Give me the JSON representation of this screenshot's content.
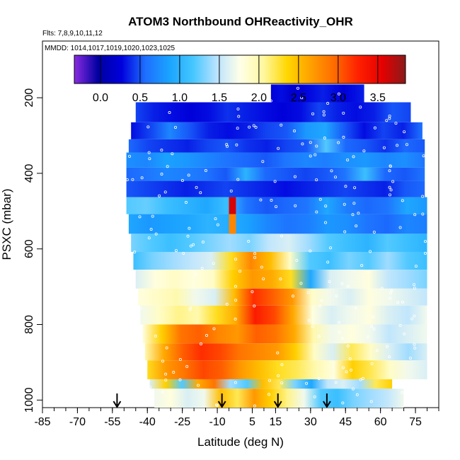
{
  "chart_data": {
    "type": "heatmap",
    "title": "ATOM3 Northbound OHReactivity_OHR",
    "flights_note": "Flts: 7,8,9,10,11,12",
    "dates_note": "MMDD: 1014,1017,1019,1020,1023,1025",
    "xlabel": "Latitude (deg N)",
    "ylabel": "PSXC (mbar)",
    "xlim": [
      -85,
      85
    ],
    "ylim": [
      1020,
      50
    ],
    "x_ticks": [
      -85,
      -70,
      -55,
      -40,
      -25,
      -10,
      5,
      15,
      30,
      45,
      60,
      75
    ],
    "x_tick_labels": [
      "-85",
      "-70",
      "-55",
      "-40",
      "-25",
      "-10",
      "5",
      "15",
      "30",
      "45",
      "60",
      "75"
    ],
    "y_ticks": [
      200,
      400,
      600,
      800,
      1000
    ],
    "y_tick_labels": [
      "200",
      "400",
      "600",
      "800",
      "1000"
    ],
    "colorbar": {
      "ticks": [
        0.0,
        0.5,
        1.0,
        1.5,
        2.0,
        2.5,
        3.0,
        3.5
      ],
      "tick_labels": [
        "0.0",
        "0.5",
        "1.0",
        "1.5",
        "2.0",
        "2.5",
        "3.0",
        "3.5"
      ],
      "range": [
        -0.33,
        3.85
      ],
      "colors": [
        "#8a2be2",
        "#0000a0",
        "#0000dd",
        "#1e6fff",
        "#1aa3ff",
        "#44c6ff",
        "#b8e2ff",
        "#ffffe8",
        "#fff8a0",
        "#ffd700",
        "#ffa000",
        "#ff6a00",
        "#ff2000",
        "#e60000",
        "#8b1a1a"
      ]
    },
    "arrows_latitude": [
      -53,
      -8,
      16,
      37
    ],
    "bands": [
      {
        "p_top": 165,
        "p_bot": 212,
        "x_start": 13,
        "x_end": 53,
        "values": [
          0.25,
          0.3,
          0.2,
          0.25,
          0.3,
          0.35,
          0.3,
          0.25,
          0.3,
          0.35
        ]
      },
      {
        "p_top": 212,
        "p_bot": 265,
        "x_start": -45,
        "x_end": 73,
        "values": [
          0.45,
          0.35,
          0.3,
          0.25,
          0.3,
          0.4,
          0.35,
          0.3,
          0.25,
          0.3,
          0.45,
          0.35,
          0.3,
          0.35,
          0.5,
          0.45
        ]
      },
      {
        "p_top": 265,
        "p_bot": 310,
        "x_start": -47,
        "x_end": 78,
        "values": [
          0.3,
          0.45,
          0.7,
          0.5,
          0.35,
          0.3,
          0.35,
          0.45,
          0.5,
          0.8,
          0.9,
          0.5,
          0.3,
          0.45,
          0.35,
          0.6
        ]
      },
      {
        "p_top": 310,
        "p_bot": 345,
        "x_start": -48,
        "x_end": 79,
        "values": [
          0.55,
          0.45,
          0.4,
          0.35,
          0.45,
          0.5,
          0.4,
          0.35,
          0.45,
          0.5,
          1.2,
          0.55,
          0.5,
          0.4,
          0.55,
          0.5
        ]
      },
      {
        "p_top": 345,
        "p_bot": 385,
        "x_start": -49,
        "x_end": 79,
        "values": [
          0.75,
          0.7,
          0.85,
          0.8,
          0.7,
          0.6,
          0.55,
          0.5,
          0.6,
          0.7,
          0.65,
          0.75,
          0.8,
          0.7,
          0.75,
          0.6
        ]
      },
      {
        "p_top": 385,
        "p_bot": 420,
        "x_start": -49,
        "x_end": 79,
        "values": [
          0.55,
          0.6,
          0.7,
          0.65,
          0.6,
          0.5,
          1.0,
          0.55,
          0.5,
          0.45,
          0.5,
          0.6,
          1.1,
          0.55,
          0.5,
          0.6
        ]
      },
      {
        "p_top": 420,
        "p_bot": 463,
        "x_start": -49,
        "x_end": 79,
        "values": [
          0.5,
          0.45,
          0.4,
          0.35,
          0.4,
          0.45,
          0.4,
          0.35,
          0.3,
          0.35,
          0.4,
          0.45,
          0.4,
          0.35,
          0.5,
          0.55
        ]
      },
      {
        "p_top": 463,
        "p_bot": 508,
        "x_start": -49,
        "x_end": 80,
        "values": [
          1.2,
          1.25,
          1.1,
          1.0,
          0.9,
          1.1,
          0.6,
          0.5,
          0.55,
          0.6,
          0.9,
          0.65,
          0.55,
          0.6,
          0.9,
          0.8
        ]
      },
      {
        "p_top": 508,
        "p_bot": 560,
        "x_start": -48,
        "x_end": 80,
        "values": [
          0.9,
          0.8,
          0.85,
          0.9,
          1.0,
          0.95,
          0.85,
          0.7,
          0.6,
          0.65,
          0.8,
          0.75,
          0.6,
          0.55,
          0.7,
          0.65
        ]
      },
      {
        "p_top": 560,
        "p_bot": 608,
        "x_start": -47,
        "x_end": 80,
        "values": [
          1.3,
          1.2,
          1.1,
          1.2,
          1.3,
          1.4,
          1.3,
          1.5,
          1.6,
          1.4,
          1.2,
          1.1,
          1.0,
          1.2,
          1.1,
          1.0
        ]
      },
      {
        "p_top": 608,
        "p_bot": 655,
        "x_start": -46,
        "x_end": 80,
        "values": [
          1.1,
          1.3,
          1.4,
          1.5,
          1.6,
          2.3,
          2.8,
          2.5,
          1.9,
          1.2,
          1.1,
          1.3,
          1.2,
          1.4,
          1.2,
          1.1
        ]
      },
      {
        "p_top": 655,
        "p_bot": 705,
        "x_start": -45,
        "x_end": 80,
        "values": [
          1.6,
          1.8,
          1.9,
          1.8,
          1.9,
          2.4,
          2.7,
          2.6,
          2.3,
          0.9,
          1.6,
          1.7,
          1.8,
          1.5,
          1.4,
          1.3
        ]
      },
      {
        "p_top": 705,
        "p_bot": 750,
        "x_start": -44,
        "x_end": 80,
        "values": [
          1.8,
          1.9,
          2.0,
          1.7,
          1.6,
          2.5,
          3.2,
          3.0,
          2.7,
          1.9,
          1.7,
          1.6,
          1.8,
          1.7,
          1.6,
          1.5
        ]
      },
      {
        "p_top": 750,
        "p_bot": 800,
        "x_start": -43,
        "x_end": 80,
        "values": [
          1.7,
          1.9,
          2.1,
          2.0,
          2.3,
          2.6,
          3.3,
          3.1,
          2.6,
          1.8,
          1.6,
          1.7,
          1.8,
          1.6,
          1.5,
          1.7
        ]
      },
      {
        "p_top": 800,
        "p_bot": 850,
        "x_start": -42,
        "x_end": 80,
        "values": [
          1.8,
          2.4,
          2.9,
          3.0,
          2.8,
          2.7,
          3.0,
          2.9,
          2.6,
          2.0,
          1.7,
          1.8,
          1.7,
          1.5,
          1.6,
          1.7
        ]
      },
      {
        "p_top": 850,
        "p_bot": 895,
        "x_start": -41,
        "x_end": 80,
        "values": [
          2.0,
          2.6,
          3.0,
          3.2,
          3.1,
          2.9,
          2.8,
          2.7,
          2.4,
          1.9,
          1.6,
          2.2,
          1.9,
          1.6,
          1.4,
          1.6
        ]
      },
      {
        "p_top": 895,
        "p_bot": 945,
        "x_start": -40,
        "x_end": 80,
        "values": [
          2.3,
          2.7,
          2.9,
          3.1,
          3.0,
          2.7,
          2.5,
          2.3,
          2.2,
          2.0,
          1.8,
          2.4,
          2.2,
          1.9,
          1.7,
          1.6
        ]
      },
      {
        "p_top": 945,
        "p_bot": 970,
        "x_start": -39,
        "x_end": 65,
        "values": [
          1.6,
          2.4,
          1.2,
          2.6,
          2.9,
          1.4,
          1.2,
          2.5,
          2.2,
          1.3,
          0.9,
          1.5,
          1.6,
          1.4,
          2.2,
          2.4
        ]
      },
      {
        "p_top": 970,
        "p_bot": 1020,
        "x_start": -37,
        "x_end": 70,
        "values": [
          1.7,
          1.8,
          1.6,
          1.7,
          2.5,
          2.2,
          2.7,
          2.4,
          2.1,
          1.7,
          1.2,
          1.1,
          1.3,
          1.4,
          1.5,
          1.7
        ]
      }
    ],
    "highlights": [
      {
        "p_top": 463,
        "p_bot": 508,
        "x_start": -5,
        "x_end": -2,
        "value": 3.6
      },
      {
        "p_top": 508,
        "p_bot": 560,
        "x_start": -5,
        "x_end": -2,
        "value": 2.8
      }
    ]
  }
}
